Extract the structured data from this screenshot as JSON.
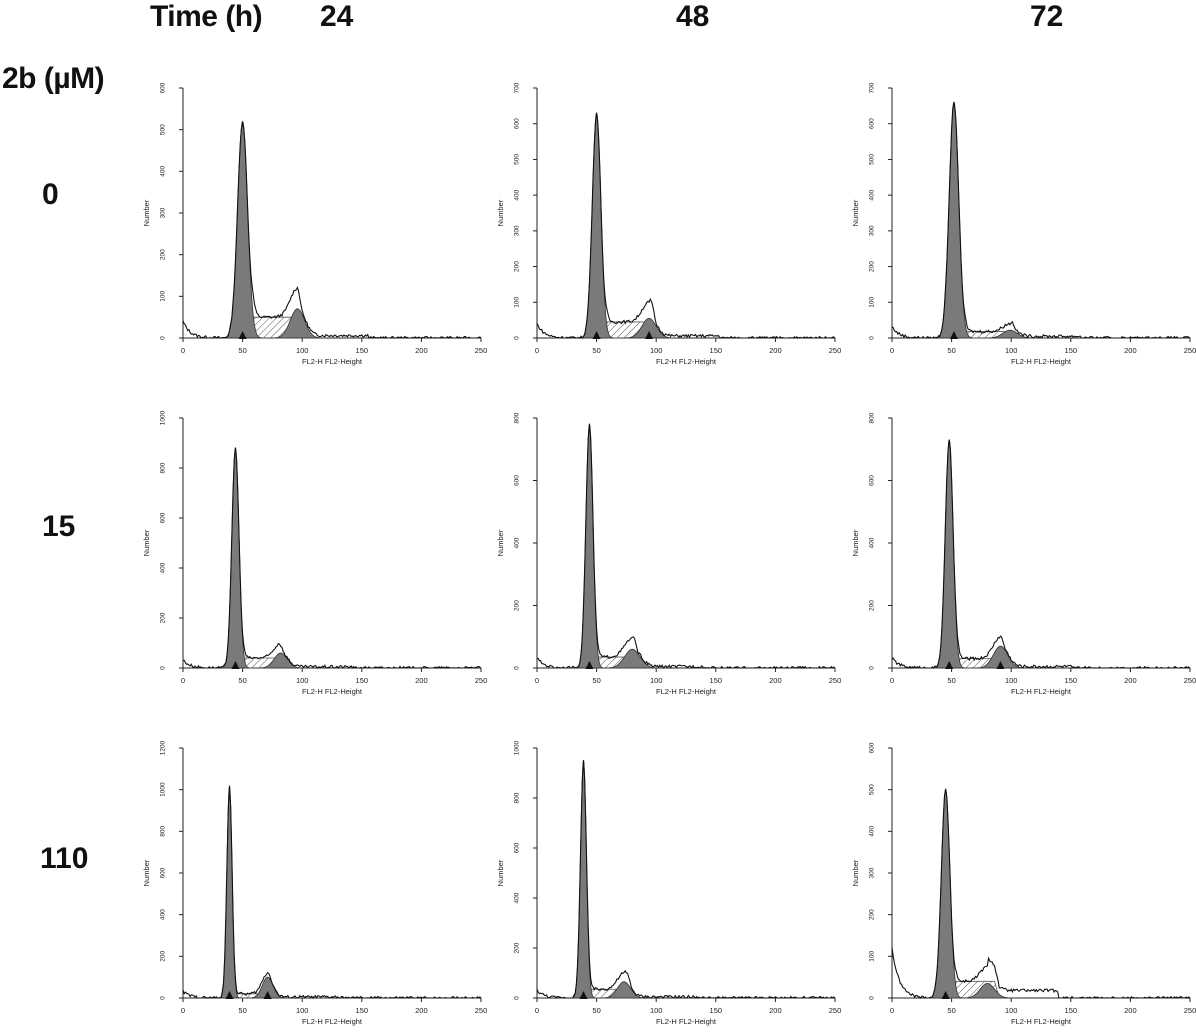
{
  "headers": {
    "time_label": "Time (h)",
    "conc_label": "2b (µM)",
    "times": [
      "24",
      "48",
      "72"
    ],
    "concentrations": [
      "0",
      "15",
      "110"
    ]
  },
  "colors": {
    "g1_fill": "#7a7a7a",
    "g2_fill": "#7a7a7a",
    "s_hatch": "#555555",
    "outline": "#111111",
    "axis": "#222222"
  },
  "chart_data": [
    {
      "type": "area",
      "row": "0",
      "col": "24",
      "xlabel": "FL2-H FL2-Height",
      "ylabel": "Number",
      "xlim": [
        0,
        250
      ],
      "xticks": [
        0,
        50,
        100,
        150,
        200,
        250
      ],
      "ylim": [
        0,
        600
      ],
      "yticks": [
        0,
        100,
        200,
        300,
        400,
        500,
        600
      ],
      "g1": {
        "mean": 50,
        "sd": 4.2,
        "height": 520
      },
      "g2": {
        "mean": 96,
        "sd": 6,
        "height": 70
      },
      "s_phase": {
        "from": 55,
        "to": 100,
        "height": 50
      },
      "debris": 10,
      "markers": [
        50
      ]
    },
    {
      "type": "area",
      "row": "0",
      "col": "48",
      "xlabel": "FL2-H FL2-Height",
      "ylabel": "Number",
      "xlim": [
        0,
        250
      ],
      "xticks": [
        0,
        50,
        100,
        150,
        200,
        250
      ],
      "ylim": [
        0,
        700
      ],
      "yticks": [
        0,
        100,
        200,
        300,
        400,
        500,
        600,
        700
      ],
      "g1": {
        "mean": 50,
        "sd": 3.6,
        "height": 630
      },
      "g2": {
        "mean": 94,
        "sd": 6,
        "height": 55
      },
      "s_phase": {
        "from": 55,
        "to": 100,
        "height": 45
      },
      "debris": 10,
      "markers": [
        50,
        94
      ]
    },
    {
      "type": "area",
      "row": "0",
      "col": "72",
      "xlabel": "FL2-H FL2-Height",
      "ylabel": "Number",
      "xlim": [
        0,
        250
      ],
      "xticks": [
        0,
        50,
        100,
        150,
        200,
        250
      ],
      "ylim": [
        0,
        700
      ],
      "yticks": [
        0,
        100,
        200,
        300,
        400,
        500,
        600,
        700
      ],
      "g1": {
        "mean": 52,
        "sd": 4,
        "height": 660
      },
      "g2": {
        "mean": 99,
        "sd": 6,
        "height": 22
      },
      "s_phase": {
        "from": 58,
        "to": 105,
        "height": 18
      },
      "debris": 8,
      "markers": [
        52
      ]
    },
    {
      "type": "area",
      "row": "15",
      "col": "24",
      "xlabel": "FL2-H FL2-Height",
      "ylabel": "Number",
      "xlim": [
        0,
        250
      ],
      "xticks": [
        0,
        50,
        100,
        150,
        200,
        250
      ],
      "ylim": [
        0,
        1000
      ],
      "yticks": [
        0,
        200,
        400,
        600,
        800,
        1000
      ],
      "g1": {
        "mean": 44,
        "sd": 3,
        "height": 880
      },
      "g2": {
        "mean": 82,
        "sd": 5.5,
        "height": 60
      },
      "s_phase": {
        "from": 48,
        "to": 85,
        "height": 40
      },
      "debris": 8,
      "markers": [
        44
      ]
    },
    {
      "type": "area",
      "row": "15",
      "col": "48",
      "xlabel": "FL2-H FL2-Height",
      "ylabel": "Number",
      "xlim": [
        0,
        250
      ],
      "xticks": [
        0,
        50,
        100,
        150,
        200,
        250
      ],
      "ylim": [
        0,
        800
      ],
      "yticks": [
        0,
        200,
        400,
        600,
        800
      ],
      "g1": {
        "mean": 44,
        "sd": 3,
        "height": 780
      },
      "g2": {
        "mean": 80,
        "sd": 6.5,
        "height": 60
      },
      "s_phase": {
        "from": 48,
        "to": 85,
        "height": 35
      },
      "debris": 8,
      "markers": [
        44
      ]
    },
    {
      "type": "area",
      "row": "15",
      "col": "72",
      "xlabel": "FL2-H FL2-Height",
      "ylabel": "Number",
      "xlim": [
        0,
        250
      ],
      "xticks": [
        0,
        50,
        100,
        150,
        200,
        250
      ],
      "ylim": [
        0,
        800
      ],
      "yticks": [
        0,
        200,
        400,
        600,
        800
      ],
      "g1": {
        "mean": 48,
        "sd": 3.3,
        "height": 730
      },
      "g2": {
        "mean": 91,
        "sd": 6,
        "height": 70
      },
      "s_phase": {
        "from": 52,
        "to": 95,
        "height": 30
      },
      "debris": 8,
      "markers": [
        48,
        91
      ]
    },
    {
      "type": "area",
      "row": "110",
      "col": "24",
      "xlabel": "FL2-H FL2-Height",
      "ylabel": "Number",
      "xlim": [
        0,
        250
      ],
      "xticks": [
        0,
        50,
        100,
        150,
        200,
        250
      ],
      "ylim": [
        0,
        1200
      ],
      "yticks": [
        0,
        200,
        400,
        600,
        800,
        1000,
        1200
      ],
      "g1": {
        "mean": 39,
        "sd": 2.2,
        "height": 1020
      },
      "g2": {
        "mean": 71,
        "sd": 4.5,
        "height": 100
      },
      "s_phase": {
        "from": 42,
        "to": 75,
        "height": 20
      },
      "debris": 8,
      "markers": [
        39,
        71
      ]
    },
    {
      "type": "area",
      "row": "110",
      "col": "48",
      "xlabel": "FL2-H FL2-Height",
      "ylabel": "Number",
      "xlim": [
        0,
        250
      ],
      "xticks": [
        0,
        50,
        100,
        150,
        200,
        250
      ],
      "ylim": [
        0,
        1000
      ],
      "yticks": [
        0,
        200,
        400,
        600,
        800,
        1000
      ],
      "g1": {
        "mean": 39,
        "sd": 2.5,
        "height": 950
      },
      "g2": {
        "mean": 73,
        "sd": 5.5,
        "height": 65
      },
      "s_phase": {
        "from": 42,
        "to": 80,
        "height": 35
      },
      "debris": 8,
      "markers": [
        39
      ]
    },
    {
      "type": "area",
      "row": "110",
      "col": "72",
      "xlabel": "FL2-H FL2-Height",
      "ylabel": "Number",
      "xlim": [
        0,
        250
      ],
      "xticks": [
        0,
        50,
        100,
        150,
        200,
        250
      ],
      "ylim": [
        0,
        600
      ],
      "yticks": [
        0,
        100,
        200,
        300,
        400,
        500,
        600
      ],
      "g1": {
        "mean": 45,
        "sd": 3.6,
        "height": 500
      },
      "g2": {
        "mean": 80,
        "sd": 6,
        "height": 35
      },
      "s_phase": {
        "from": 50,
        "to": 90,
        "height": 40
      },
      "debris": 30,
      "markers": [
        45
      ]
    }
  ]
}
